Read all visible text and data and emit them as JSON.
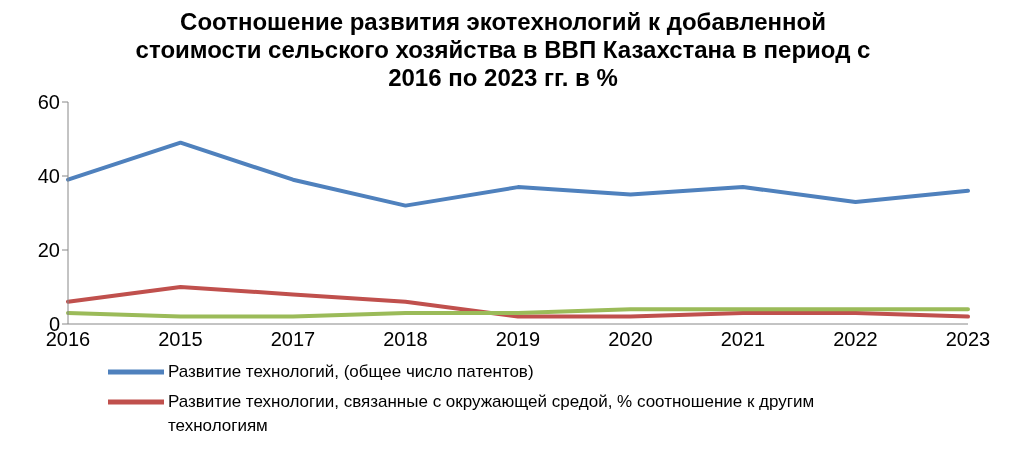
{
  "chart_data": {
    "type": "line",
    "title": "Соотношение развития экотехнологий к добавленной стоимости сельского хозяйства в ВВП Казахстана в период с 2016 по 2023 гг. в %",
    "categories": [
      "2016",
      "2015",
      "2017",
      "2018",
      "2019",
      "2020",
      "2021",
      "2022",
      "2023"
    ],
    "series": [
      {
        "name": "Развитие технологий, (общее число патентов)",
        "color": "#4f81bd",
        "values": [
          39,
          49,
          39,
          32,
          37,
          35,
          37,
          33,
          36
        ]
      },
      {
        "name": "Развитие технологии, связанные с окружающей средой, % соотношение к другим технологиям",
        "color": "#c0504d",
        "values": [
          6,
          10,
          8,
          6,
          2,
          2,
          3,
          3,
          2
        ]
      },
      {
        "color": "#9bbb59",
        "values": [
          3,
          2,
          2,
          3,
          3,
          4,
          4,
          4,
          4
        ]
      }
    ],
    "ylim": [
      0,
      60
    ],
    "yticks": [
      0,
      20,
      40,
      60
    ],
    "grid": false,
    "legend": "bottom",
    "marker": "none",
    "line_style": "solid"
  }
}
